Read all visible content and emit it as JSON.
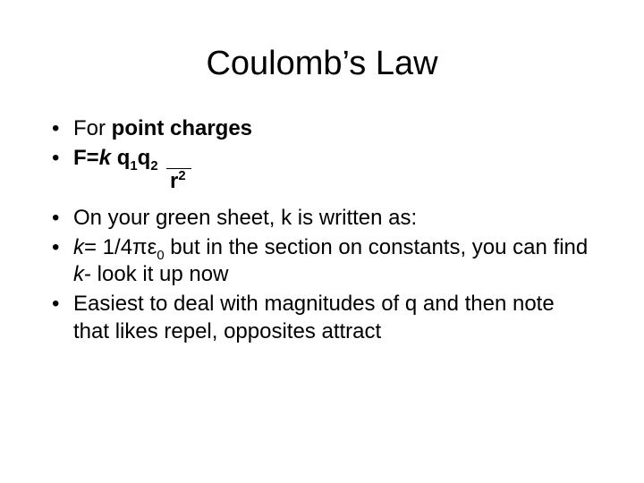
{
  "title": "Coulomb’s Law",
  "bullets_group1": {
    "b1_prefix": "For ",
    "b1_bold": "point charges",
    "b2_F": "F=",
    "b2_k": "k",
    "b2_space": "  ",
    "b2_q": "q",
    "b2_sub1": "1",
    "b2_q2": "q",
    "b2_sub2": "2",
    "denom_r": "r",
    "denom_sup": "2"
  },
  "bullets_group2": {
    "b3": "On your green sheet, k is written as:",
    "b4_k": "k",
    "b4_eq": "= 1/4",
    "b4_pi": "πε",
    "b4_sub0": "0",
    "b4_mid": " but in the section on constants, you can find ",
    "b4_k2": "k",
    "b4_tail": "- look it up now",
    "b5": "Easiest to deal with magnitudes of q and then note that likes repel, opposites attract"
  },
  "style": {
    "background_color": "#ffffff",
    "text_color": "#000000",
    "title_fontsize": 38,
    "body_fontsize": 24,
    "font_family": "Arial"
  }
}
